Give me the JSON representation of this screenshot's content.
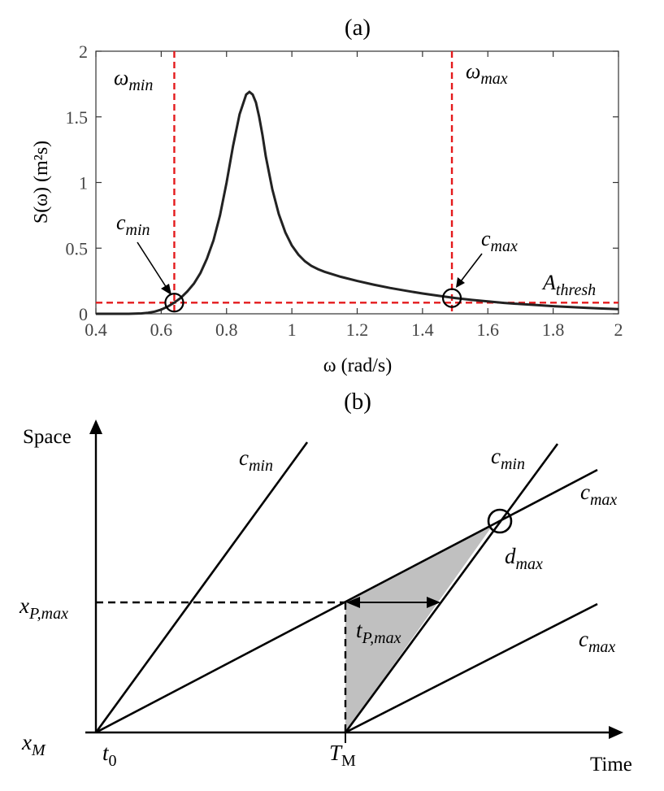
{
  "chart_data": [
    {
      "type": "line",
      "panel_label": "(a)",
      "xlabel": "ω (rad/s)",
      "ylabel": "S(ω) (m²s)",
      "xlim": [
        0.4,
        2
      ],
      "ylim": [
        0,
        2
      ],
      "x_ticks": [
        "0.4",
        "0.6",
        "0.8",
        "1",
        "1.2",
        "1.4",
        "1.6",
        "1.8",
        "2"
      ],
      "y_ticks": [
        "0",
        "0.5",
        "1",
        "1.5",
        "2"
      ],
      "grid": false,
      "series": [
        {
          "color": "#222222",
          "x": [
            0.4,
            0.45,
            0.5,
            0.52,
            0.54,
            0.56,
            0.58,
            0.6,
            0.62,
            0.64,
            0.66,
            0.68,
            0.7,
            0.72,
            0.74,
            0.76,
            0.78,
            0.8,
            0.82,
            0.84,
            0.86,
            0.87,
            0.88,
            0.89,
            0.9,
            0.91,
            0.92,
            0.94,
            0.96,
            0.98,
            1.0,
            1.02,
            1.04,
            1.06,
            1.08,
            1.1,
            1.15,
            1.2,
            1.25,
            1.3,
            1.35,
            1.4,
            1.45,
            1.5,
            1.55,
            1.6,
            1.65,
            1.7,
            1.75,
            1.8,
            1.85,
            1.9,
            1.95,
            2.0
          ],
          "y": [
            0.0,
            0.0,
            0.0,
            0.001,
            0.003,
            0.008,
            0.017,
            0.032,
            0.055,
            0.085,
            0.122,
            0.17,
            0.23,
            0.31,
            0.42,
            0.56,
            0.75,
            1.0,
            1.28,
            1.52,
            1.67,
            1.69,
            1.67,
            1.61,
            1.5,
            1.36,
            1.2,
            0.95,
            0.76,
            0.62,
            0.52,
            0.45,
            0.4,
            0.365,
            0.34,
            0.32,
            0.282,
            0.25,
            0.222,
            0.197,
            0.175,
            0.155,
            0.137,
            0.12,
            0.106,
            0.094,
            0.083,
            0.074,
            0.066,
            0.058,
            0.052,
            0.046,
            0.04,
            0.035
          ]
        }
      ],
      "reference_lines": {
        "color": "#e41a1c",
        "vertical": [
          {
            "x": 0.64,
            "label": "ω",
            "subscript": "min"
          },
          {
            "x": 1.49,
            "label": "ω",
            "subscript": "max"
          }
        ],
        "horizontal": [
          {
            "y": 0.085,
            "label": "A",
            "subscript": "thresh"
          }
        ]
      },
      "markers": [
        {
          "x": 0.64,
          "y": 0.085,
          "label": "c",
          "subscript": "min"
        },
        {
          "x": 1.49,
          "y": 0.12,
          "label": "c",
          "subscript": "max"
        }
      ]
    },
    {
      "type": "diagram",
      "panel_label": "(b)",
      "xlabel": "Time",
      "ylabel": "Space",
      "origin_x_label": {
        "base": "t",
        "sub": "0"
      },
      "origin_y_label": {
        "base": "x",
        "sub": "M"
      },
      "tm_label": {
        "base": "T",
        "sub": "M"
      },
      "xp_label": {
        "base": "x",
        "sub": "P,max"
      },
      "tp_label": {
        "base": "t",
        "sub": "P,max"
      },
      "dmax_label": {
        "base": "d",
        "sub": "max"
      },
      "line_labels": [
        {
          "base": "c",
          "sub": "min"
        },
        {
          "base": "c",
          "sub": "min"
        },
        {
          "base": "c",
          "sub": "max"
        },
        {
          "base": "c",
          "sub": "max"
        }
      ],
      "region_fill": "#c0c0c0"
    }
  ]
}
